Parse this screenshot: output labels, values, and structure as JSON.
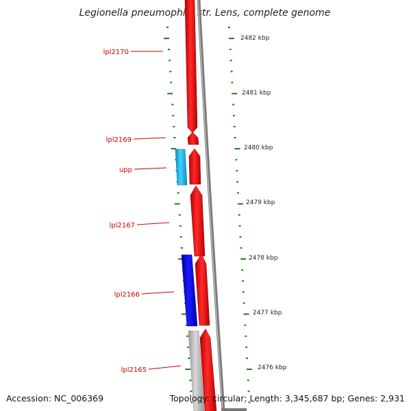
{
  "title": "Legionella pneumophila str. Lens, complete genome",
  "accession": "Accession: NC_006369",
  "topology": "Topology: circular; Length: 3,345,687 bp; Genes: 2,931",
  "scale_labels": [
    "2482 kbp",
    "2481 kbp",
    "2480 kbp",
    "2479 kbp",
    "2478 kbp",
    "2477 kbp",
    "2476 kbp"
  ],
  "gene_labels": [
    "lpl2170",
    "lpl2169",
    "upp",
    "lpl2167",
    "lpl2166",
    "lpl2165"
  ],
  "colors": {
    "forward_gene": "#ee0000",
    "reverse_gene_light": "#22bbee",
    "reverse_gene_dark": "#0000dd",
    "other_feature": "#bbbbbb",
    "label_text": "#cc0000",
    "tick": "#1a7a1a",
    "backbone": "#777777"
  }
}
